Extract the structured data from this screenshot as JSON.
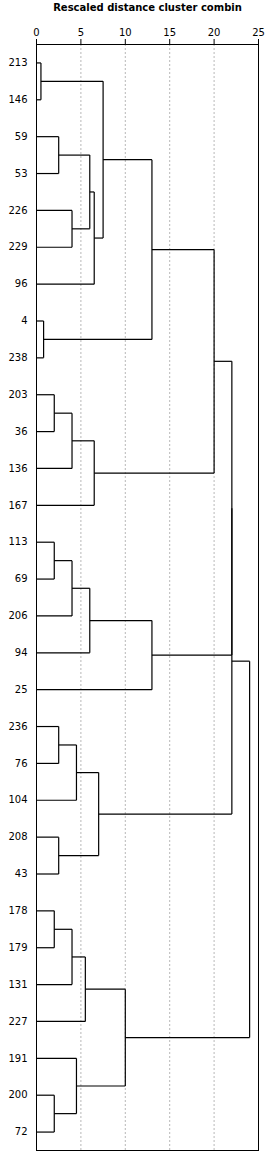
{
  "chart_data": {
    "type": "dendrogram",
    "title": "Rescaled distance cluster combin",
    "categories": [
      "213",
      "146",
      "59",
      "53",
      "226",
      "229",
      "96",
      "4",
      "238",
      "203",
      "36",
      "136",
      "167",
      "113",
      "69",
      "206",
      "94",
      "25",
      "236",
      "76",
      "104",
      "208",
      "43",
      "178",
      "179",
      "131",
      "227",
      "191",
      "200",
      "72"
    ],
    "merges": [
      [
        0,
        1,
        0.5
      ],
      [
        2,
        3,
        2.5
      ],
      [
        4,
        5,
        4.0
      ],
      [
        31,
        32,
        6.0
      ],
      [
        6,
        33,
        6.5
      ],
      [
        30,
        34,
        7.5
      ],
      [
        7,
        8,
        0.8
      ],
      [
        35,
        36,
        13.0
      ],
      [
        9,
        10,
        2.0
      ],
      [
        38,
        11,
        4.0
      ],
      [
        39,
        12,
        6.5
      ],
      [
        37,
        40,
        20.0
      ],
      [
        13,
        14,
        2.0
      ],
      [
        42,
        15,
        4.0
      ],
      [
        43,
        16,
        6.0
      ],
      [
        44,
        17,
        13.0
      ],
      [
        41,
        45,
        22.0
      ],
      [
        18,
        19,
        2.5
      ],
      [
        47,
        20,
        4.5
      ],
      [
        21,
        22,
        2.5
      ],
      [
        48,
        49,
        7.0
      ],
      [
        46,
        50,
        22.0
      ],
      [
        23,
        24,
        2.0
      ],
      [
        52,
        25,
        4.0
      ],
      [
        53,
        26,
        5.5
      ],
      [
        28,
        29,
        2.0
      ],
      [
        27,
        55,
        4.5
      ],
      [
        54,
        56,
        10.0
      ],
      [
        51,
        57,
        24.0
      ]
    ],
    "xlim": [
      0,
      25
    ],
    "xticks": [
      0,
      5,
      10,
      15,
      20,
      25
    ],
    "color": "#000000",
    "grid": true
  }
}
